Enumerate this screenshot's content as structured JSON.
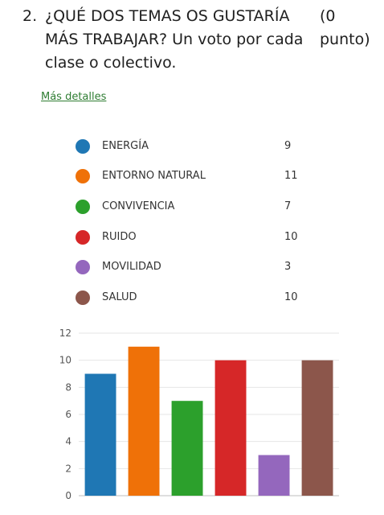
{
  "question": {
    "number": "2.",
    "text": "¿QUÉ DOS TEMAS OS GUSTARÍA MÁS TRABAJAR? Un voto por cada clase o colectivo.",
    "points": "(0 punto)"
  },
  "details_link": "Más detalles",
  "legend": [
    {
      "label": "ENERGÍA",
      "count": "9",
      "color": "#1f77b4"
    },
    {
      "label": "ENTORNO NATURAL",
      "count": "11",
      "color": "#ef7108"
    },
    {
      "label": "CONVIVENCIA",
      "count": "7",
      "color": "#2ca02c"
    },
    {
      "label": "RUIDO",
      "count": "10",
      "color": "#d62728"
    },
    {
      "label": "MOVILIDAD",
      "count": "3",
      "color": "#9467bd"
    },
    {
      "label": "SALUD",
      "count": "10",
      "color": "#8c564b"
    }
  ],
  "chart_data": {
    "type": "bar",
    "categories": [
      "ENERGÍA",
      "ENTORNO NATURAL",
      "CONVIVENCIA",
      "RUIDO",
      "MOVILIDAD",
      "SALUD"
    ],
    "values": [
      9,
      11,
      7,
      10,
      3,
      10
    ],
    "colors": [
      "#1f77b4",
      "#ef7108",
      "#2ca02c",
      "#d62728",
      "#9467bd",
      "#8c564b"
    ],
    "ylim": [
      0,
      12
    ],
    "yticks": [
      "0",
      "2",
      "4",
      "6",
      "8",
      "10",
      "12"
    ],
    "grid": true,
    "title": "",
    "xlabel": "",
    "ylabel": ""
  }
}
